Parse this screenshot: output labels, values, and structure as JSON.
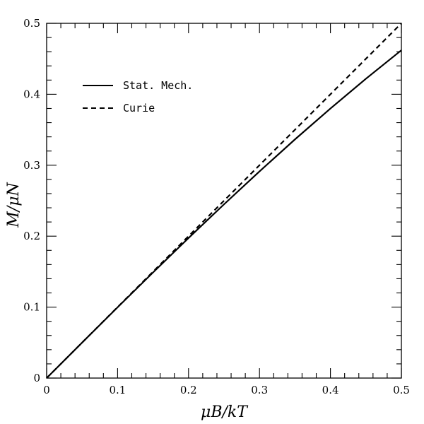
{
  "chart_data": {
    "type": "line",
    "title": "",
    "xlabel": "μB/kT",
    "ylabel": "M/μN",
    "xlim": [
      0,
      0.5
    ],
    "ylim": [
      0,
      0.5
    ],
    "x_ticks": [
      0,
      0.1,
      0.2,
      0.3,
      0.4,
      0.5
    ],
    "x_tick_labels": [
      "0",
      "0.1",
      "0.2",
      "0.3",
      "0.4",
      "0.5"
    ],
    "y_ticks": [
      0,
      0.1,
      0.2,
      0.3,
      0.4,
      0.5
    ],
    "y_tick_labels": [
      "0",
      "0.1",
      "0.2",
      "0.3",
      "0.4",
      "0.5"
    ],
    "grid": false,
    "legend_position": "upper-left",
    "series": [
      {
        "name": "Stat. Mech.",
        "line_style": "solid",
        "color": "#000000",
        "x": [
          0,
          0.05,
          0.1,
          0.15,
          0.2,
          0.25,
          0.3,
          0.35,
          0.4,
          0.45,
          0.5
        ],
        "y": [
          0,
          0.05,
          0.0997,
          0.1489,
          0.1974,
          0.2449,
          0.2913,
          0.3364,
          0.3799,
          0.4219,
          0.4621
        ]
      },
      {
        "name": "Curie",
        "line_style": "dashed",
        "color": "#000000",
        "x": [
          0,
          0.5
        ],
        "y": [
          0,
          0.5
        ]
      }
    ]
  }
}
